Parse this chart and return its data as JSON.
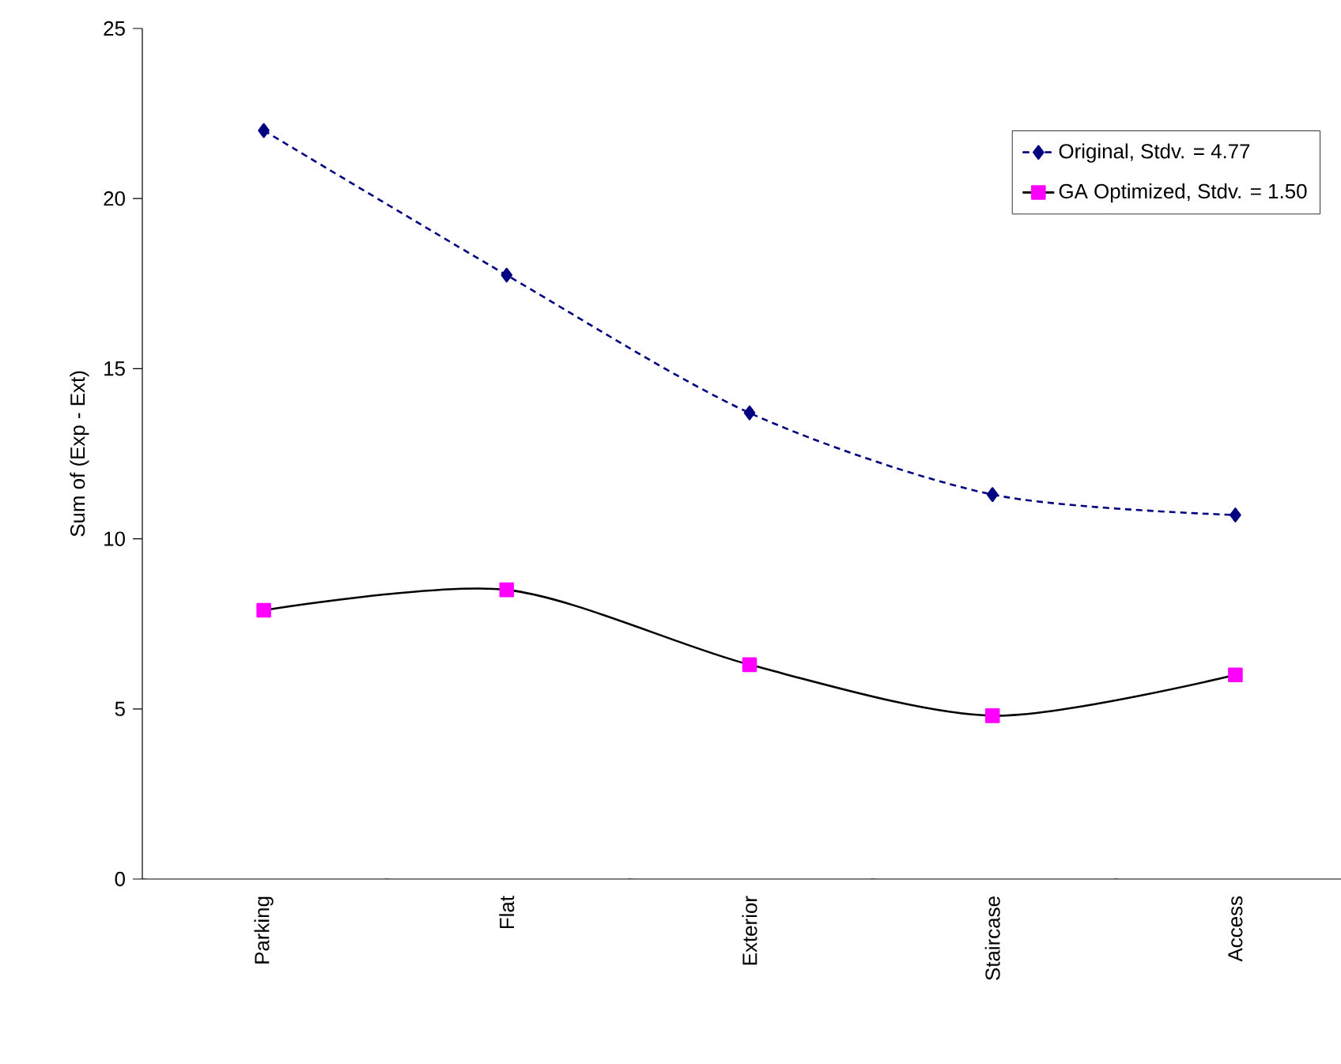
{
  "chart_data": {
    "type": "line",
    "ylabel": "Sum of (Exp - Ext)",
    "categories": [
      "Parking",
      "Flat",
      "Exterior",
      "Staircase",
      "Access"
    ],
    "series": [
      {
        "name": "Original, Stdv. = 4.77",
        "color": "#000080",
        "values": [
          22.0,
          17.75,
          13.7,
          11.3,
          10.7
        ],
        "marker": "diamond",
        "line_style": "dashed"
      },
      {
        "name": "GA Optimized, Stdv. = 1.50",
        "color": "#ff00ff",
        "values": [
          7.9,
          8.5,
          6.3,
          4.8,
          6.0
        ],
        "marker": "square",
        "line_style": "solid"
      }
    ],
    "ylim": [
      0,
      25
    ],
    "yticks": [
      0,
      5,
      10,
      15,
      20,
      25
    ],
    "grid": false,
    "legend": "top right"
  }
}
